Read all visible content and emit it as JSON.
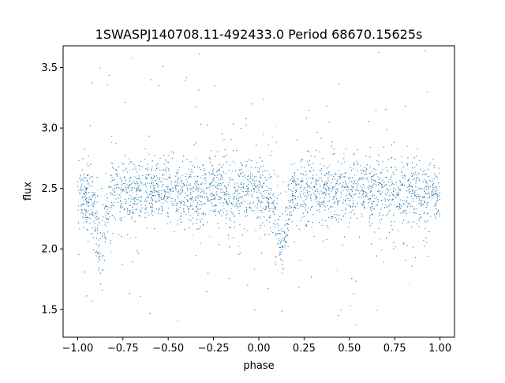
{
  "chart_data": {
    "type": "scatter",
    "title": "1SWASPJ140708.11-492433.0 Period 68670.15625s",
    "xlabel": "phase",
    "ylabel": "flux",
    "xlim": [
      -1.08,
      1.08
    ],
    "ylim": [
      1.27,
      3.68
    ],
    "x_ticks": [
      -1.0,
      -0.75,
      -0.5,
      -0.25,
      0.0,
      0.25,
      0.5,
      0.75,
      1.0
    ],
    "x_tick_labels": [
      "−1.00",
      "−0.75",
      "−0.50",
      "−0.25",
      "0.00",
      "0.25",
      "0.50",
      "0.75",
      "1.00"
    ],
    "y_ticks": [
      1.5,
      2.0,
      2.5,
      3.0,
      3.5
    ],
    "y_tick_labels": [
      "1.5",
      "2.0",
      "2.5",
      "3.0",
      "3.5"
    ],
    "grid": false,
    "marker_color": "#1f77b4",
    "series_points_sampled": [
      [
        -1.0,
        2.45
      ],
      [
        -0.975,
        2.48
      ],
      [
        -0.95,
        2.42
      ],
      [
        -0.925,
        2.38
      ],
      [
        -0.9,
        2.22
      ],
      [
        -0.885,
        2.1
      ],
      [
        -0.87,
        1.97
      ],
      [
        -0.855,
        2.08
      ],
      [
        -0.84,
        2.25
      ],
      [
        -0.82,
        2.42
      ],
      [
        -0.8,
        2.47
      ],
      [
        -0.75,
        2.5
      ],
      [
        -0.7,
        2.5
      ],
      [
        -0.6,
        2.49
      ],
      [
        -0.5,
        2.48
      ],
      [
        -0.4,
        2.47
      ],
      [
        -0.3,
        2.47
      ],
      [
        -0.2,
        2.47
      ],
      [
        -0.1,
        2.46
      ],
      [
        0.0,
        2.45
      ],
      [
        0.05,
        2.44
      ],
      [
        0.08,
        2.38
      ],
      [
        0.1,
        2.22
      ],
      [
        0.115,
        2.08
      ],
      [
        0.13,
        1.96
      ],
      [
        0.145,
        2.08
      ],
      [
        0.16,
        2.25
      ],
      [
        0.18,
        2.42
      ],
      [
        0.2,
        2.47
      ],
      [
        0.25,
        2.5
      ],
      [
        0.3,
        2.5
      ],
      [
        0.4,
        2.49
      ],
      [
        0.5,
        2.48
      ],
      [
        0.6,
        2.47
      ],
      [
        0.7,
        2.47
      ],
      [
        0.8,
        2.47
      ],
      [
        0.9,
        2.46
      ],
      [
        1.0,
        2.45
      ]
    ]
  }
}
